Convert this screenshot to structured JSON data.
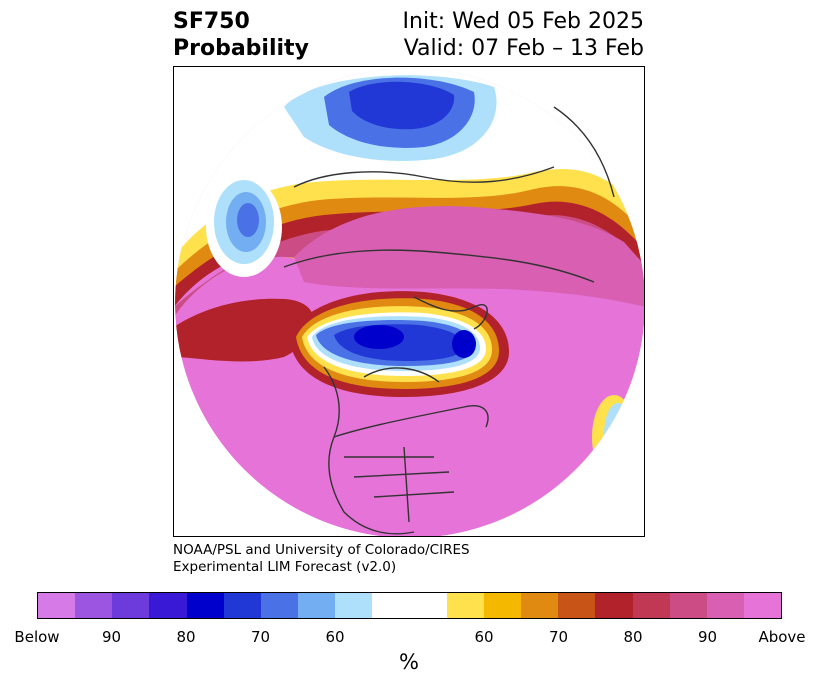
{
  "header": {
    "title_line1": "SF750",
    "title_line2": "Probability",
    "init_text": "Init: Wed 05 Feb 2025",
    "valid_text": "Valid: 07 Feb – 13 Feb"
  },
  "credit": {
    "line1": "NOAA/PSL and University of Colorado/CIRES",
    "line2": "Experimental LIM Forecast (v2.0)"
  },
  "colorbar": {
    "colors": [
      "#d67ae8",
      "#9c55e0",
      "#6d3adb",
      "#3a19d6",
      "#0000cc",
      "#2238d6",
      "#4a72e6",
      "#74aef2",
      "#aee0fb",
      "#ffffff",
      "#ffffff",
      "#ffe14d",
      "#f5b800",
      "#e08a12",
      "#c85418",
      "#b2222a",
      "#c03854",
      "#cc4d85",
      "#d85fb2",
      "#e673d8"
    ],
    "tick_labels": [
      "Below",
      "90",
      "80",
      "70",
      "60",
      "60",
      "70",
      "80",
      "90",
      "Above"
    ],
    "unit": "%"
  },
  "map": {
    "projection": "north-polar-stereographic",
    "fill_colors": {
      "above_max": "#e673d8",
      "above_90": "#d85fb2",
      "above_80": "#b2222a",
      "above_70": "#e08a12",
      "above_60": "#ffe14d",
      "below_60": "#aee0fb",
      "below_70": "#4a72e6",
      "below_80": "#0000cc",
      "below_max": "#3a19d6",
      "coastline": "#333333"
    }
  }
}
